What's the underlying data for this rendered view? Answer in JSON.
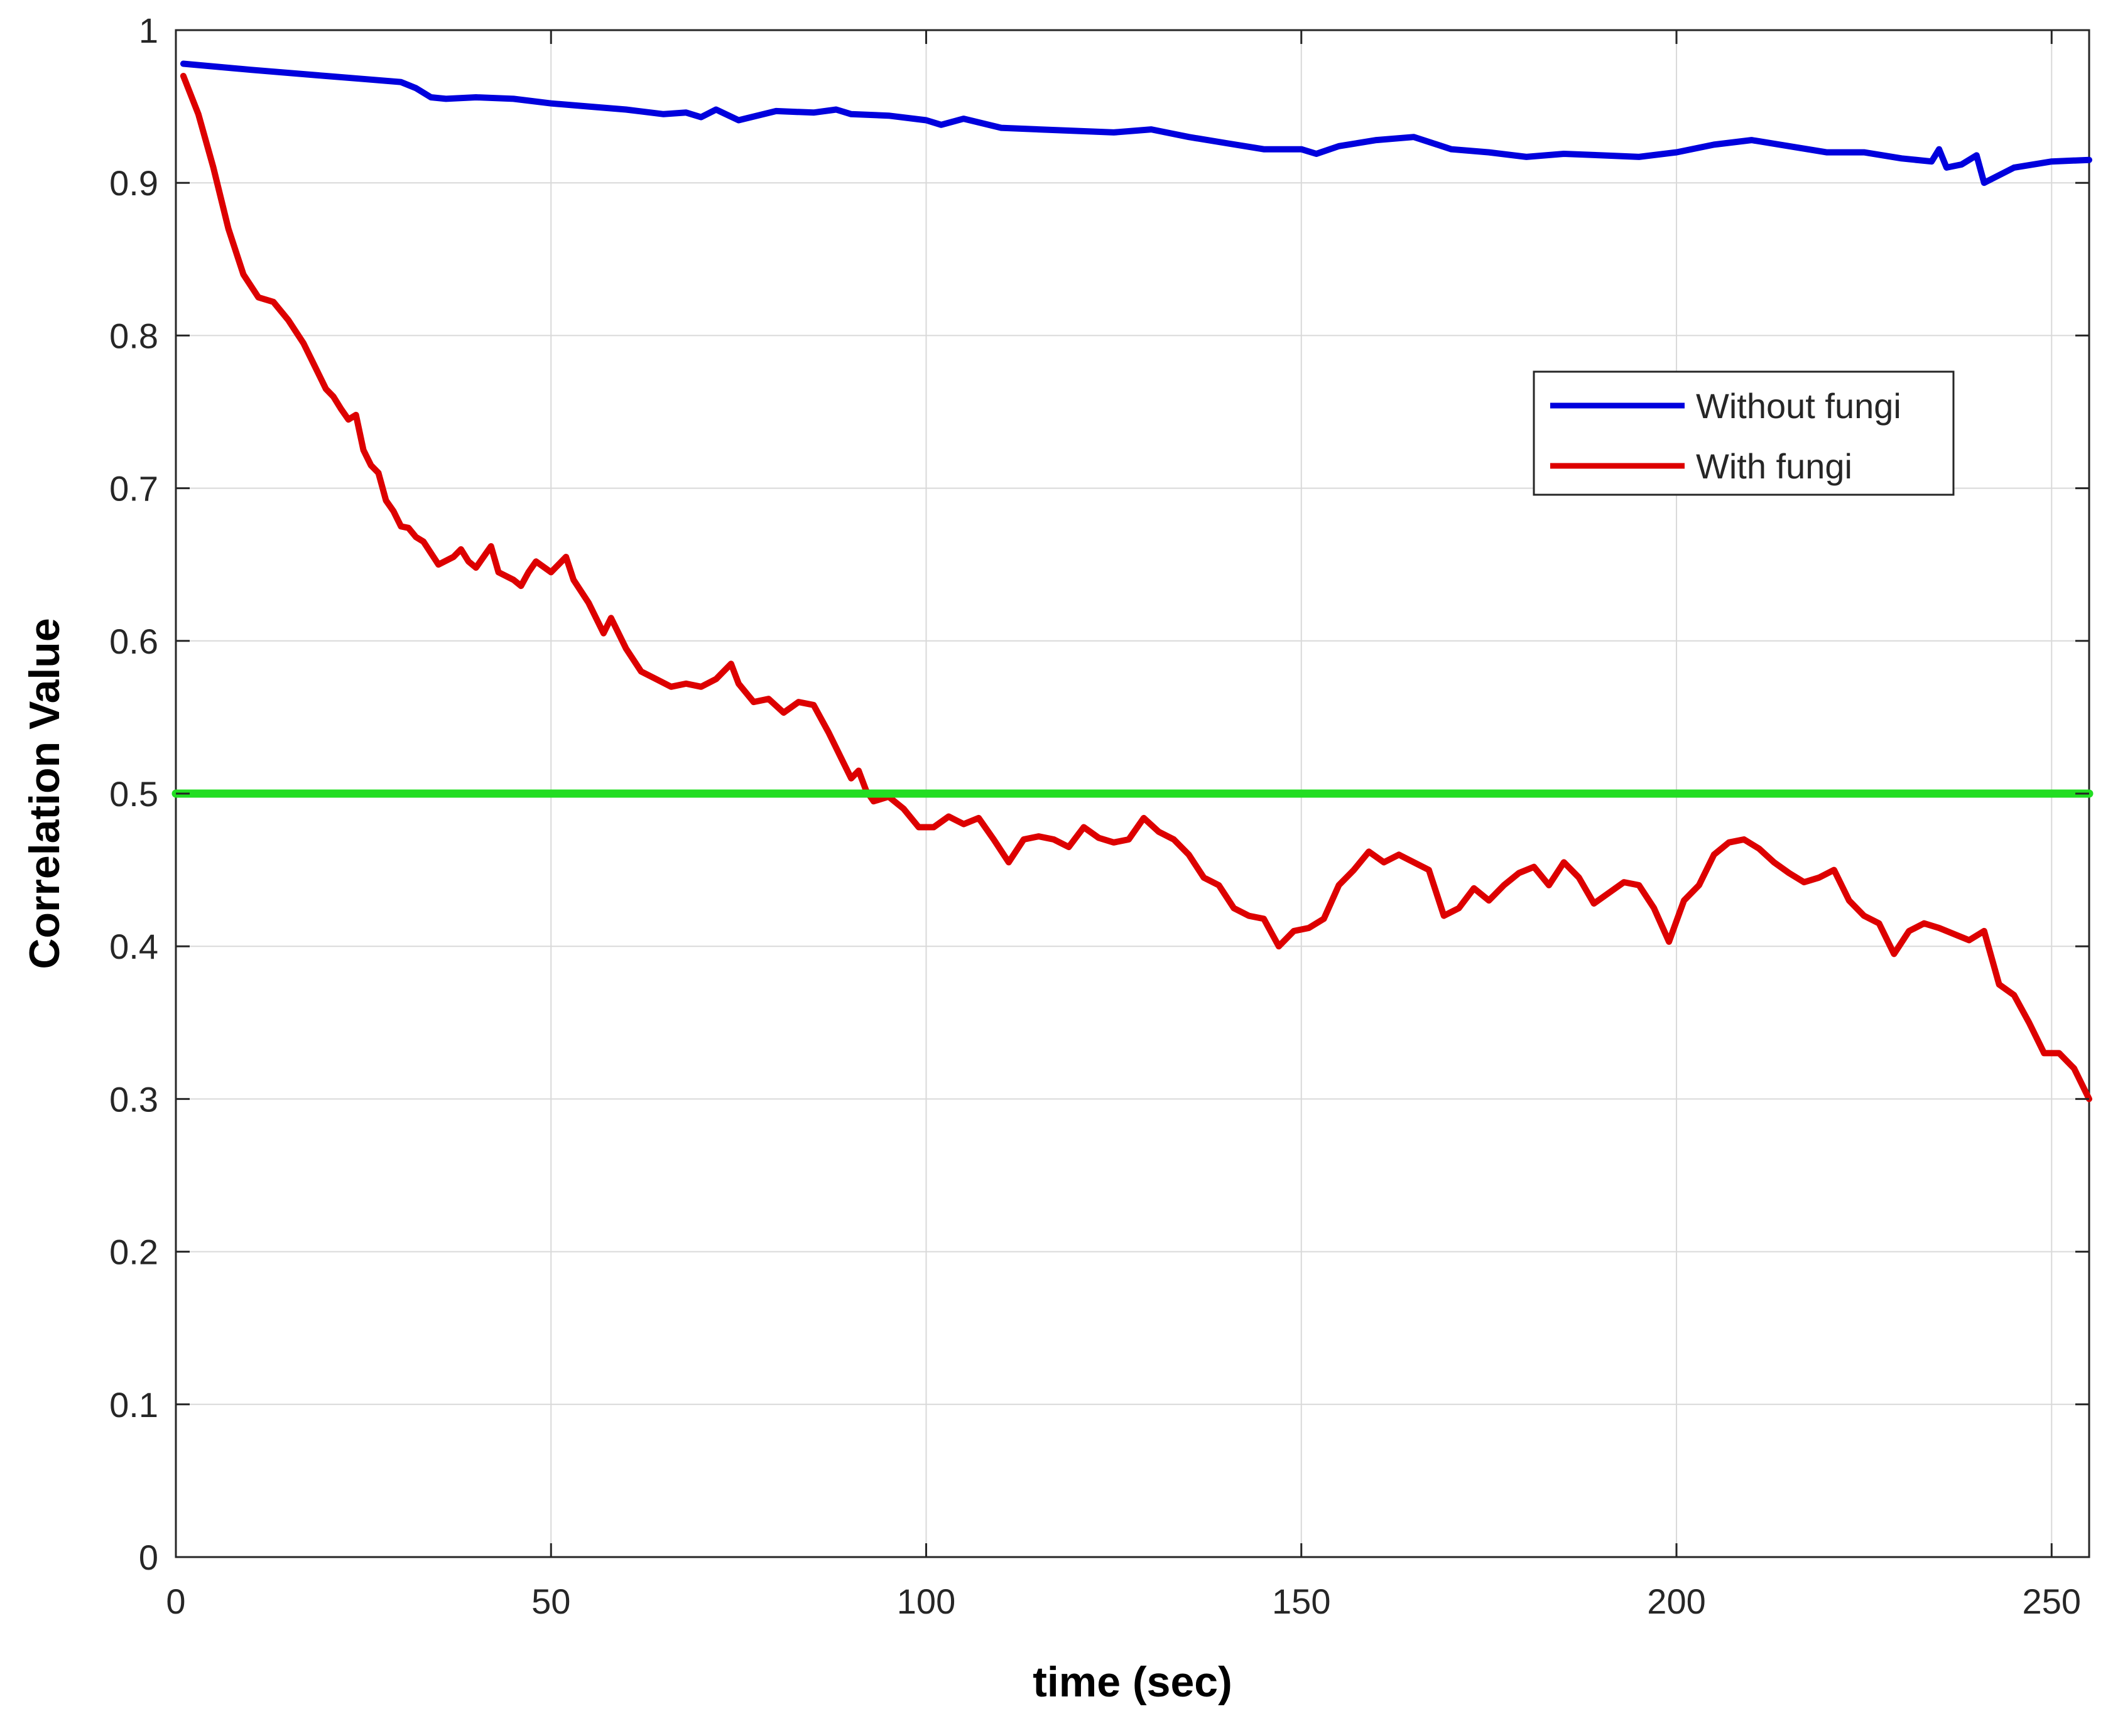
{
  "chart_data": {
    "type": "line",
    "title": "",
    "xlabel": "time (sec)",
    "ylabel": "Correlation Value",
    "xlim": [
      0,
      255
    ],
    "ylim": [
      0,
      1
    ],
    "xticks": [
      0,
      50,
      100,
      150,
      200,
      250
    ],
    "yticks": [
      0,
      0.1,
      0.2,
      0.3,
      0.4,
      0.5,
      0.6,
      0.7,
      0.8,
      0.9,
      1
    ],
    "ytick_labels": [
      "0",
      "0.1",
      "0.2",
      "0.3",
      "0.4",
      "0.5",
      "0.6",
      "0.7",
      "0.8",
      "0.9",
      "1"
    ],
    "grid": true,
    "legend_position": "right",
    "series": [
      {
        "name": "Without fungi",
        "color": "#0000dd",
        "x": [
          1,
          10,
          20,
          25,
          30,
          32,
          34,
          36,
          40,
          45,
          50,
          55,
          60,
          65,
          68,
          70,
          72,
          75,
          80,
          85,
          88,
          90,
          95,
          100,
          102,
          105,
          110,
          115,
          120,
          125,
          130,
          135,
          140,
          145,
          150,
          152,
          155,
          160,
          165,
          170,
          175,
          180,
          185,
          190,
          195,
          200,
          205,
          210,
          215,
          220,
          225,
          230,
          234,
          235,
          236,
          238,
          240,
          241,
          245,
          250,
          255
        ],
        "y": [
          0.978,
          0.974,
          0.97,
          0.968,
          0.966,
          0.962,
          0.956,
          0.955,
          0.956,
          0.955,
          0.952,
          0.95,
          0.948,
          0.945,
          0.946,
          0.943,
          0.948,
          0.941,
          0.947,
          0.946,
          0.948,
          0.945,
          0.944,
          0.941,
          0.938,
          0.942,
          0.936,
          0.935,
          0.934,
          0.933,
          0.935,
          0.93,
          0.926,
          0.922,
          0.922,
          0.919,
          0.924,
          0.928,
          0.93,
          0.922,
          0.92,
          0.917,
          0.919,
          0.918,
          0.917,
          0.92,
          0.925,
          0.928,
          0.924,
          0.92,
          0.92,
          0.916,
          0.914,
          0.922,
          0.91,
          0.912,
          0.918,
          0.9,
          0.91,
          0.914,
          0.915
        ]
      },
      {
        "name": "With fungi",
        "color": "#dd0000",
        "x": [
          1,
          3,
          5,
          7,
          9,
          11,
          13,
          15,
          17,
          19,
          20,
          21,
          22,
          23,
          24,
          25,
          26,
          27,
          28,
          29,
          30,
          31,
          32,
          33,
          35,
          37,
          38,
          39,
          40,
          42,
          43,
          45,
          46,
          47,
          48,
          50,
          51,
          52,
          53,
          55,
          57,
          58,
          60,
          62,
          64,
          66,
          68,
          70,
          72,
          74,
          75,
          77,
          79,
          81,
          83,
          85,
          87,
          89,
          90,
          91,
          92,
          93,
          95,
          97,
          99,
          101,
          103,
          105,
          107,
          109,
          111,
          113,
          115,
          117,
          119,
          121,
          123,
          125,
          127,
          129,
          131,
          133,
          135,
          137,
          139,
          141,
          143,
          145,
          147,
          149,
          151,
          153,
          155,
          157,
          159,
          161,
          163,
          165,
          167,
          169,
          171,
          173,
          175,
          177,
          179,
          181,
          183,
          185,
          187,
          189,
          191,
          193,
          195,
          197,
          199,
          201,
          203,
          205,
          207,
          209,
          211,
          213,
          215,
          217,
          219,
          221,
          223,
          225,
          227,
          229,
          231,
          233,
          235,
          237,
          239,
          241,
          243,
          245,
          247,
          249,
          251,
          253,
          255
        ],
        "y": [
          0.97,
          0.945,
          0.91,
          0.87,
          0.84,
          0.825,
          0.822,
          0.81,
          0.795,
          0.775,
          0.765,
          0.76,
          0.752,
          0.745,
          0.748,
          0.725,
          0.715,
          0.71,
          0.692,
          0.685,
          0.675,
          0.674,
          0.668,
          0.665,
          0.65,
          0.655,
          0.66,
          0.652,
          0.648,
          0.662,
          0.645,
          0.64,
          0.636,
          0.645,
          0.652,
          0.645,
          0.65,
          0.655,
          0.64,
          0.625,
          0.605,
          0.615,
          0.595,
          0.58,
          0.575,
          0.57,
          0.572,
          0.57,
          0.575,
          0.585,
          0.572,
          0.56,
          0.562,
          0.553,
          0.56,
          0.558,
          0.54,
          0.52,
          0.51,
          0.515,
          0.502,
          0.495,
          0.498,
          0.49,
          0.478,
          0.478,
          0.485,
          0.48,
          0.484,
          0.47,
          0.455,
          0.47,
          0.472,
          0.47,
          0.465,
          0.478,
          0.471,
          0.468,
          0.47,
          0.484,
          0.475,
          0.47,
          0.46,
          0.445,
          0.44,
          0.425,
          0.42,
          0.418,
          0.4,
          0.41,
          0.412,
          0.418,
          0.44,
          0.45,
          0.462,
          0.455,
          0.46,
          0.455,
          0.45,
          0.42,
          0.425,
          0.438,
          0.43,
          0.44,
          0.448,
          0.452,
          0.44,
          0.455,
          0.445,
          0.428,
          0.435,
          0.442,
          0.44,
          0.425,
          0.403,
          0.43,
          0.44,
          0.46,
          0.468,
          0.47,
          0.464,
          0.455,
          0.448,
          0.442,
          0.445,
          0.45,
          0.43,
          0.42,
          0.415,
          0.395,
          0.41,
          0.415,
          0.412,
          0.408,
          0.404,
          0.41,
          0.375,
          0.368,
          0.35,
          0.33,
          0.33,
          0.32,
          0.3
        ]
      },
      {
        "color": "#22dd22",
        "x": [
          0,
          255
        ],
        "y": [
          0.5,
          0.5
        ]
      }
    ]
  }
}
